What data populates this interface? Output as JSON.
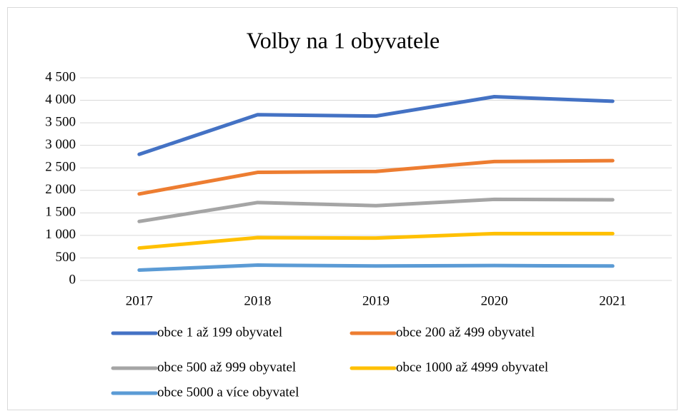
{
  "chart_data": {
    "type": "line",
    "title": "Volby na 1 obyvatele",
    "categories": [
      "2017",
      "2018",
      "2019",
      "2020",
      "2021"
    ],
    "series": [
      {
        "name": "obce 1 až 199 obyvatel",
        "color": "#4472c4",
        "values": [
          2800,
          3680,
          3650,
          4080,
          3980
        ]
      },
      {
        "name": "obce 200 až 499 obyvatel",
        "color": "#ed7d31",
        "values": [
          1920,
          2400,
          2420,
          2640,
          2660
        ]
      },
      {
        "name": "obce 500 až 999 obyvatel",
        "color": "#a5a5a5",
        "values": [
          1310,
          1730,
          1660,
          1800,
          1790
        ]
      },
      {
        "name": "obce 1000 až 4999 obyvatel",
        "color": "#ffc000",
        "values": [
          720,
          950,
          940,
          1040,
          1040
        ]
      },
      {
        "name": "obce 5000 a více obyvatel",
        "color": "#5b9bd5",
        "values": [
          230,
          340,
          320,
          330,
          320
        ]
      }
    ],
    "ylim": [
      0,
      4500
    ],
    "yticks": [
      0,
      500,
      {
        "value": 1000,
        "label": "1 000"
      },
      {
        "value": 1500,
        "label": "1 500"
      },
      {
        "value": 2000,
        "label": "2 000"
      },
      {
        "value": 2500,
        "label": "2 500"
      },
      {
        "value": 3000,
        "label": "3 000"
      },
      {
        "value": 3500,
        "label": "3 500"
      },
      {
        "value": 4000,
        "label": "4 000"
      },
      {
        "value": 4500,
        "label": "4 500"
      }
    ],
    "grid": true
  }
}
